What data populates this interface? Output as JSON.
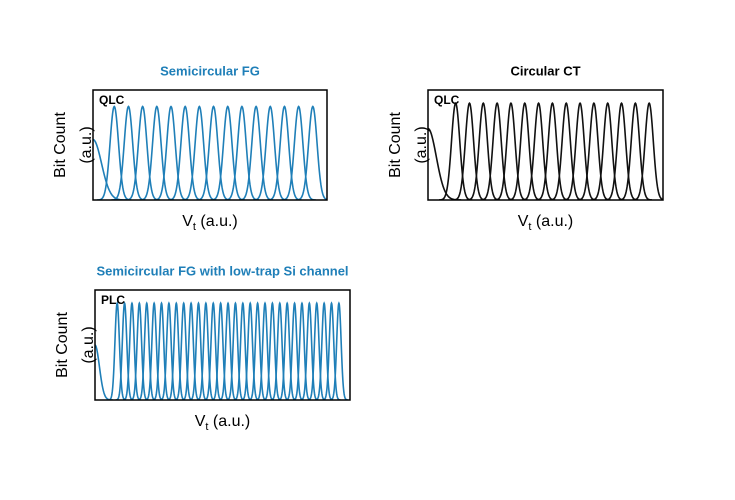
{
  "chart_data": [
    {
      "type": "distribution",
      "title": "Semicircular  FG",
      "title_color": "#1f7fb8",
      "annotation": "QLC",
      "ylabel": [
        "Bit Count",
        "(a.u.)"
      ],
      "xlabel": [
        "V",
        "t",
        " (a.u.)"
      ],
      "color": "#1f7fb8",
      "xlim": [
        0,
        16.5
      ],
      "ylim": [
        0,
        1
      ],
      "x": [
        0,
        1.5,
        2.5,
        3.5,
        4.5,
        5.5,
        6.5,
        7.5,
        8.5,
        9.5,
        10.5,
        11.5,
        12.5,
        13.5,
        14.5,
        15.5
      ],
      "values": [
        0.55,
        0.85,
        0.85,
        0.85,
        0.85,
        0.85,
        0.85,
        0.85,
        0.85,
        0.85,
        0.85,
        0.85,
        0.85,
        0.85,
        0.85,
        0.85
      ]
    },
    {
      "type": "distribution",
      "title": "Circular  CT",
      "title_color": "#000000",
      "annotation": "QLC",
      "ylabel": [
        "Bit Count",
        "(a.u.)"
      ],
      "xlabel": [
        "V",
        "t",
        " (a.u.)"
      ],
      "color": "#111111",
      "xlim": [
        0,
        17
      ],
      "ylim": [
        0,
        1
      ],
      "x": [
        0,
        2,
        3,
        4,
        5,
        6,
        7,
        8,
        9,
        10,
        11,
        12,
        13,
        14,
        15,
        16
      ],
      "values": [
        0.65,
        0.88,
        0.88,
        0.88,
        0.88,
        0.88,
        0.88,
        0.88,
        0.88,
        0.88,
        0.88,
        0.88,
        0.88,
        0.88,
        0.88,
        0.88
      ]
    },
    {
      "type": "distribution",
      "title": "Semicircular  FG with low-trap Si channel",
      "title_color": "#1f7fb8",
      "annotation": "PLC",
      "ylabel": [
        "Bit Count",
        "(a.u.)"
      ],
      "xlabel": [
        "V",
        "t",
        " (a.u.)"
      ],
      "color": "#1f7fb8",
      "xlim": [
        0,
        34.5
      ],
      "ylim": [
        0,
        1
      ],
      "x": [
        0,
        3,
        4,
        5,
        6,
        7,
        8,
        9,
        10,
        11,
        12,
        13,
        14,
        15,
        16,
        17,
        18,
        19,
        20,
        21,
        22,
        23,
        24,
        25,
        26,
        27,
        28,
        29,
        30,
        31,
        32,
        33
      ],
      "values": [
        0.5,
        0.88,
        0.88,
        0.88,
        0.88,
        0.88,
        0.88,
        0.88,
        0.88,
        0.88,
        0.88,
        0.88,
        0.88,
        0.88,
        0.88,
        0.88,
        0.88,
        0.88,
        0.88,
        0.88,
        0.88,
        0.88,
        0.88,
        0.88,
        0.88,
        0.88,
        0.88,
        0.88,
        0.88,
        0.88,
        0.88,
        0.88
      ]
    }
  ]
}
